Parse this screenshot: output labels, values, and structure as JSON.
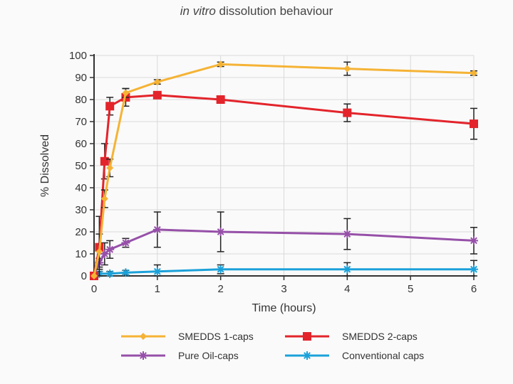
{
  "title": {
    "prefix": "in vitro",
    "rest": "dissolution behaviour"
  },
  "chart_data": {
    "type": "line",
    "title": "in vitro dissolution behaviour",
    "xlabel": "Time (hours)",
    "ylabel": "% Dissolved",
    "xlim": [
      0,
      6
    ],
    "ylim": [
      0,
      100
    ],
    "x_ticks": [
      0,
      1,
      2,
      3,
      4,
      5,
      6
    ],
    "y_ticks": [
      0,
      10,
      20,
      30,
      40,
      50,
      60,
      70,
      80,
      90,
      100
    ],
    "grid": true,
    "legend_position": "bottom",
    "series": [
      {
        "name": "SMEDDS 1-caps",
        "color": "#f5b335",
        "marker": "diamond",
        "x": [
          0,
          0.083,
          0.167,
          0.25,
          0.5,
          1,
          2,
          4,
          6
        ],
        "y": [
          0,
          11,
          35,
          49,
          83,
          88,
          96,
          94,
          92
        ],
        "err": [
          0,
          8,
          4,
          4,
          2,
          1,
          1,
          3,
          1
        ]
      },
      {
        "name": "SMEDDS 2-caps",
        "color": "#e3242b",
        "marker": "square",
        "x": [
          0,
          0.083,
          0.167,
          0.25,
          0.5,
          1,
          2,
          4,
          6
        ],
        "y": [
          0,
          13,
          52,
          77,
          81,
          82,
          80,
          74,
          69
        ],
        "err": [
          0,
          14,
          8,
          4,
          4,
          1,
          1,
          4,
          7
        ]
      },
      {
        "name": "Pure Oil-caps",
        "color": "#9650a8",
        "marker": "asterisk",
        "x": [
          0,
          0.083,
          0.167,
          0.25,
          0.5,
          1,
          2,
          4,
          6
        ],
        "y": [
          0,
          6,
          10,
          12,
          15,
          21,
          20,
          19,
          16
        ],
        "err": [
          0,
          2,
          5,
          4,
          2,
          8,
          9,
          7,
          6
        ]
      },
      {
        "name": "Conventional caps",
        "color": "#1ba1d9",
        "marker": "asterisk",
        "x": [
          0,
          0.083,
          0.25,
          0.5,
          1,
          2,
          4,
          6
        ],
        "y": [
          0,
          1,
          1,
          1.5,
          2,
          3,
          3,
          3
        ],
        "err": [
          0,
          1,
          1,
          1,
          3,
          2,
          3,
          4
        ]
      }
    ]
  }
}
